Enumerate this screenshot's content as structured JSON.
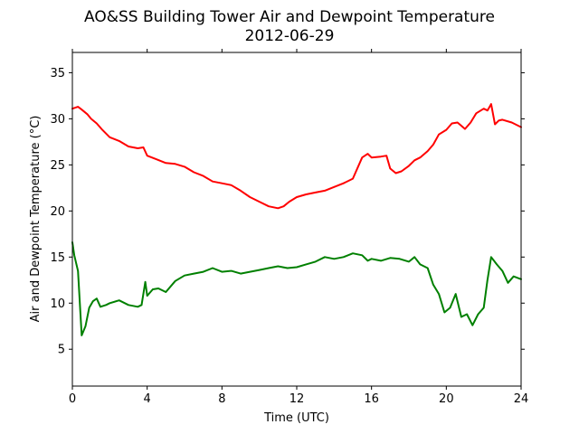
{
  "chart_data": {
    "type": "line",
    "title": "AO&SS Building Tower Air and Dewpoint Temperature",
    "subtitle": "2012-06-29",
    "xlabel": "Time (UTC)",
    "ylabel": "Air and Dewpoint Temperature (°C)",
    "xlim": [
      0,
      24
    ],
    "ylim": [
      1,
      37.2
    ],
    "xticks": [
      0,
      4,
      8,
      12,
      16,
      20,
      24
    ],
    "yticks": [
      5,
      10,
      15,
      20,
      25,
      30,
      35
    ],
    "grid": false,
    "legend": "none",
    "series": [
      {
        "color": "#ff0000",
        "x": [
          0,
          0.3,
          0.5,
          0.8,
          1.0,
          1.3,
          1.6,
          2.0,
          2.5,
          3.0,
          3.5,
          3.8,
          4.0,
          4.5,
          5.0,
          5.5,
          6.0,
          6.5,
          7.0,
          7.5,
          8.0,
          8.5,
          9.0,
          9.5,
          10.0,
          10.5,
          11.0,
          11.3,
          11.6,
          12.0,
          12.5,
          13.0,
          13.5,
          14.0,
          14.5,
          15.0,
          15.5,
          15.8,
          16.0,
          16.5,
          16.8,
          17.0,
          17.3,
          17.6,
          18.0,
          18.3,
          18.6,
          19.0,
          19.3,
          19.6,
          20.0,
          20.3,
          20.6,
          21.0,
          21.3,
          21.6,
          22.0,
          22.2,
          22.4,
          22.6,
          22.8,
          23.0,
          23.5,
          24.0
        ],
        "y": [
          31.1,
          31.3,
          31.0,
          30.5,
          30.0,
          29.5,
          28.8,
          28.0,
          27.6,
          27.0,
          26.8,
          26.9,
          26.0,
          25.6,
          25.2,
          25.1,
          24.8,
          24.2,
          23.8,
          23.2,
          23.0,
          22.8,
          22.2,
          21.5,
          21.0,
          20.5,
          20.3,
          20.5,
          21.0,
          21.5,
          21.8,
          22.0,
          22.2,
          22.6,
          23.0,
          23.5,
          25.8,
          26.2,
          25.8,
          25.9,
          26.0,
          24.6,
          24.1,
          24.3,
          24.9,
          25.5,
          25.8,
          26.5,
          27.2,
          28.3,
          28.8,
          29.5,
          29.6,
          28.9,
          29.6,
          30.6,
          31.1,
          30.9,
          31.6,
          29.4,
          29.8,
          29.9,
          29.6,
          29.1
        ]
      },
      {
        "color": "#008000",
        "x": [
          0,
          0.1,
          0.3,
          0.5,
          0.7,
          0.9,
          1.1,
          1.3,
          1.5,
          1.8,
          2.0,
          2.5,
          3.0,
          3.5,
          3.7,
          3.9,
          4.0,
          4.3,
          4.6,
          5.0,
          5.5,
          6.0,
          6.5,
          7.0,
          7.5,
          8.0,
          8.5,
          9.0,
          9.5,
          10.0,
          10.5,
          11.0,
          11.5,
          12.0,
          12.5,
          13.0,
          13.5,
          14.0,
          14.5,
          15.0,
          15.5,
          15.8,
          16.0,
          16.5,
          17.0,
          17.5,
          18.0,
          18.3,
          18.6,
          19.0,
          19.3,
          19.6,
          19.9,
          20.2,
          20.5,
          20.8,
          21.1,
          21.4,
          21.7,
          22.0,
          22.2,
          22.4,
          22.7,
          23.0,
          23.3,
          23.6,
          24.0
        ],
        "y": [
          16.6,
          15.2,
          13.5,
          6.5,
          7.5,
          9.5,
          10.2,
          10.5,
          9.6,
          9.8,
          10.0,
          10.3,
          9.8,
          9.6,
          9.8,
          12.3,
          10.8,
          11.5,
          11.6,
          11.2,
          12.4,
          13.0,
          13.2,
          13.4,
          13.8,
          13.4,
          13.5,
          13.2,
          13.4,
          13.6,
          13.8,
          14.0,
          13.8,
          13.9,
          14.2,
          14.5,
          15.0,
          14.8,
          15.0,
          15.4,
          15.2,
          14.6,
          14.8,
          14.6,
          14.9,
          14.8,
          14.5,
          15.0,
          14.2,
          13.8,
          12.0,
          11.0,
          9.0,
          9.5,
          11.0,
          8.5,
          8.8,
          7.6,
          8.8,
          9.5,
          12.5,
          15.0,
          14.2,
          13.5,
          12.2,
          12.9,
          12.6
        ]
      }
    ]
  }
}
